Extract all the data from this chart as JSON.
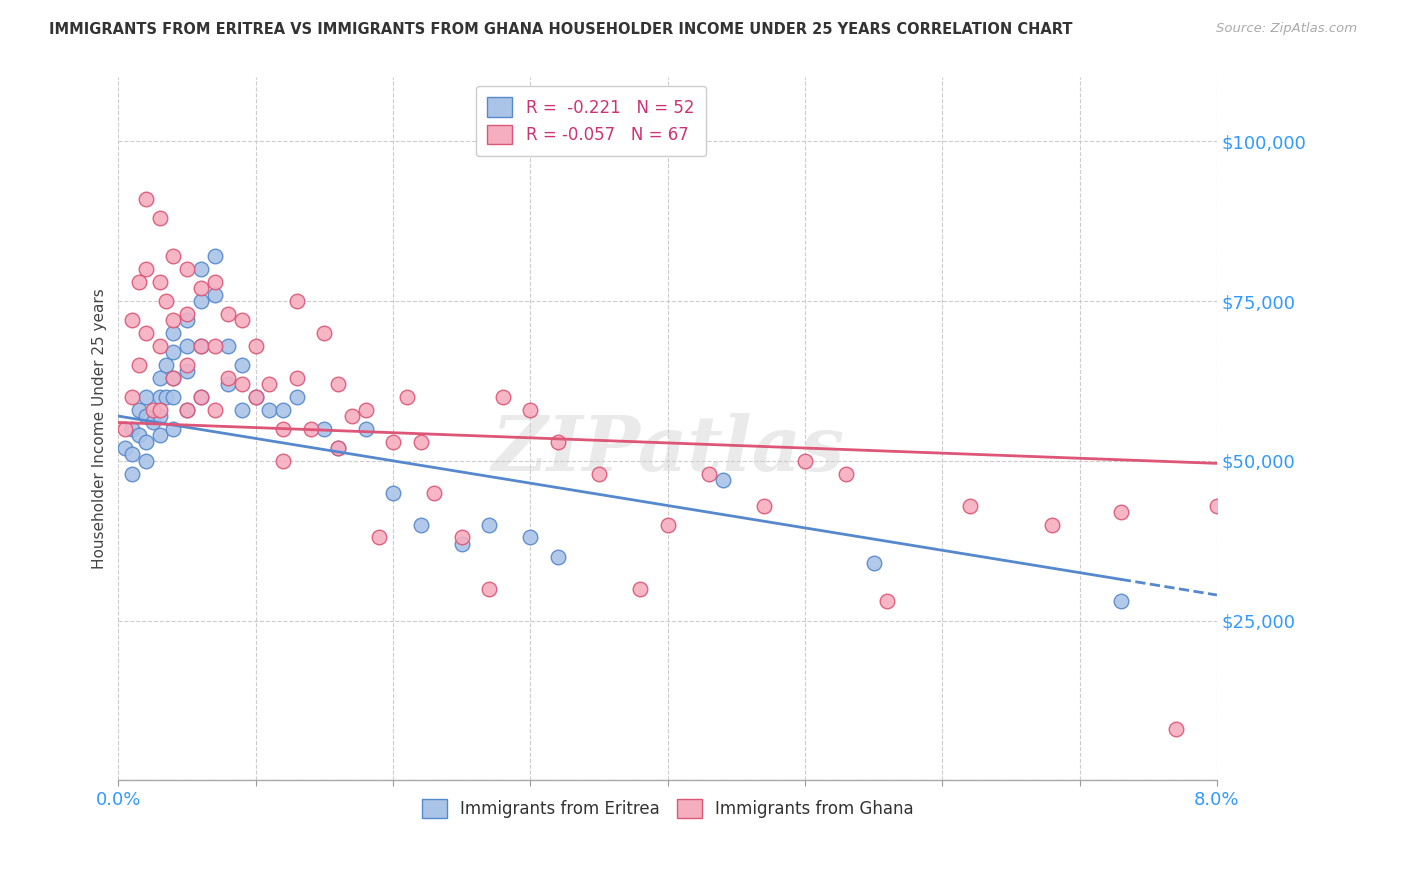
{
  "title": "IMMIGRANTS FROM ERITREA VS IMMIGRANTS FROM GHANA HOUSEHOLDER INCOME UNDER 25 YEARS CORRELATION CHART",
  "source": "Source: ZipAtlas.com",
  "ylabel": "Householder Income Under 25 years",
  "xlim": [
    0.0,
    0.08
  ],
  "ylim": [
    0,
    110000
  ],
  "xticks": [
    0.0,
    0.01,
    0.02,
    0.03,
    0.04,
    0.05,
    0.06,
    0.07,
    0.08
  ],
  "yticks": [
    0,
    25000,
    50000,
    75000,
    100000
  ],
  "eritrea_color": "#aac4e8",
  "ghana_color": "#f5aec0",
  "eritrea_edge": "#5588cc",
  "ghana_edge": "#dd5577",
  "trend_eritrea_color": "#5588cc",
  "trend_ghana_color": "#dd5577",
  "R_eritrea": -0.221,
  "N_eritrea": 52,
  "R_ghana": -0.057,
  "N_ghana": 67,
  "eritrea_x": [
    0.0005,
    0.001,
    0.001,
    0.001,
    0.0015,
    0.0015,
    0.002,
    0.002,
    0.002,
    0.002,
    0.0025,
    0.003,
    0.003,
    0.003,
    0.003,
    0.0035,
    0.0035,
    0.004,
    0.004,
    0.004,
    0.004,
    0.004,
    0.005,
    0.005,
    0.005,
    0.005,
    0.006,
    0.006,
    0.006,
    0.006,
    0.007,
    0.007,
    0.008,
    0.008,
    0.009,
    0.009,
    0.01,
    0.011,
    0.012,
    0.013,
    0.015,
    0.016,
    0.018,
    0.02,
    0.022,
    0.025,
    0.027,
    0.03,
    0.032,
    0.044,
    0.055,
    0.073
  ],
  "eritrea_y": [
    52000,
    55000,
    51000,
    48000,
    58000,
    54000,
    60000,
    57000,
    53000,
    50000,
    56000,
    63000,
    60000,
    57000,
    54000,
    65000,
    60000,
    70000,
    67000,
    63000,
    60000,
    55000,
    72000,
    68000,
    64000,
    58000,
    80000,
    75000,
    68000,
    60000,
    82000,
    76000,
    68000,
    62000,
    65000,
    58000,
    60000,
    58000,
    58000,
    60000,
    55000,
    52000,
    55000,
    45000,
    40000,
    37000,
    40000,
    38000,
    35000,
    47000,
    34000,
    28000
  ],
  "ghana_x": [
    0.0005,
    0.001,
    0.001,
    0.0015,
    0.0015,
    0.002,
    0.002,
    0.002,
    0.0025,
    0.003,
    0.003,
    0.003,
    0.003,
    0.0035,
    0.004,
    0.004,
    0.004,
    0.005,
    0.005,
    0.005,
    0.005,
    0.006,
    0.006,
    0.006,
    0.007,
    0.007,
    0.007,
    0.008,
    0.008,
    0.009,
    0.009,
    0.01,
    0.01,
    0.011,
    0.012,
    0.012,
    0.013,
    0.013,
    0.014,
    0.015,
    0.016,
    0.016,
    0.017,
    0.018,
    0.019,
    0.02,
    0.021,
    0.022,
    0.023,
    0.025,
    0.027,
    0.028,
    0.03,
    0.032,
    0.035,
    0.038,
    0.04,
    0.043,
    0.047,
    0.05,
    0.053,
    0.056,
    0.062,
    0.068,
    0.073,
    0.077,
    0.08
  ],
  "ghana_y": [
    55000,
    72000,
    60000,
    78000,
    65000,
    91000,
    80000,
    70000,
    58000,
    88000,
    78000,
    68000,
    58000,
    75000,
    82000,
    72000,
    63000,
    80000,
    73000,
    65000,
    58000,
    77000,
    68000,
    60000,
    78000,
    68000,
    58000,
    73000,
    63000,
    72000,
    62000,
    68000,
    60000,
    62000,
    55000,
    50000,
    75000,
    63000,
    55000,
    70000,
    62000,
    52000,
    57000,
    58000,
    38000,
    53000,
    60000,
    53000,
    45000,
    38000,
    30000,
    60000,
    58000,
    53000,
    48000,
    30000,
    40000,
    48000,
    43000,
    50000,
    48000,
    28000,
    43000,
    40000,
    42000,
    8000,
    43000
  ],
  "watermark": "ZIPatlas",
  "background_color": "#ffffff",
  "grid_color": "#cccccc",
  "trend_intercept_eritrea": 57000,
  "trend_slope_eritrea": -350000,
  "trend_intercept_ghana": 56000,
  "trend_slope_ghana": -80000
}
